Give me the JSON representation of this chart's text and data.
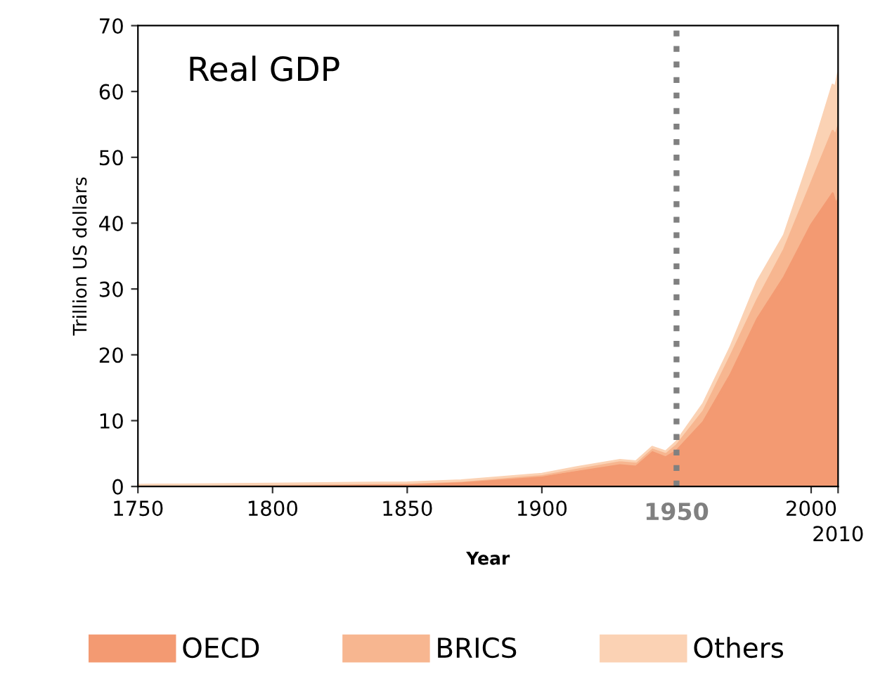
{
  "chart_data": {
    "type": "area",
    "stacked": true,
    "title": "Real GDP",
    "xlabel": "Year",
    "ylabel": "Trillion US dollars",
    "x": [
      1750,
      1800,
      1850,
      1870,
      1900,
      1913,
      1929,
      1935,
      1941,
      1946,
      1950,
      1960,
      1970,
      1980,
      1990,
      2000,
      2008,
      2009,
      2010
    ],
    "series": [
      {
        "name": "OECD",
        "color": "#f39a72",
        "values": [
          0.1,
          0.2,
          0.3,
          0.6,
          1.4,
          2.2,
          3.2,
          3.0,
          5.2,
          4.4,
          5.4,
          9.8,
          16.9,
          25.4,
          31.8,
          39.7,
          44.5,
          43.0,
          43.5
        ]
      },
      {
        "name": "BRICS",
        "color": "#f7b690",
        "values": [
          0.1,
          0.1,
          0.2,
          0.2,
          0.3,
          0.4,
          0.5,
          0.5,
          0.4,
          0.5,
          0.8,
          1.6,
          2.8,
          2.9,
          4.2,
          6.3,
          9.5,
          10.3,
          11.1
        ]
      },
      {
        "name": "Others",
        "color": "#fbd2b4",
        "values": [
          0.0,
          0.1,
          0.1,
          0.1,
          0.2,
          0.3,
          0.3,
          0.3,
          0.4,
          0.4,
          0.6,
          1.2,
          1.4,
          2.8,
          2.2,
          4.3,
          7.0,
          7.4,
          8.1
        ]
      }
    ],
    "xlim": [
      1750,
      2010
    ],
    "ylim": [
      0,
      70
    ],
    "xticks": [
      1750,
      1800,
      1850,
      1900,
      2000,
      {
        "value": 2010,
        "label": null
      }
    ],
    "yticks": [
      0,
      10,
      20,
      30,
      40,
      50,
      60,
      70
    ],
    "annotations": [
      {
        "text": "2010",
        "x": 2010,
        "y": 0
      }
    ],
    "ref_lines": [
      {
        "axis": "x",
        "value": 1950,
        "label": "1950",
        "color": "#808080",
        "line_style": "dotted"
      }
    ],
    "grid": false,
    "legend": "bottom"
  }
}
